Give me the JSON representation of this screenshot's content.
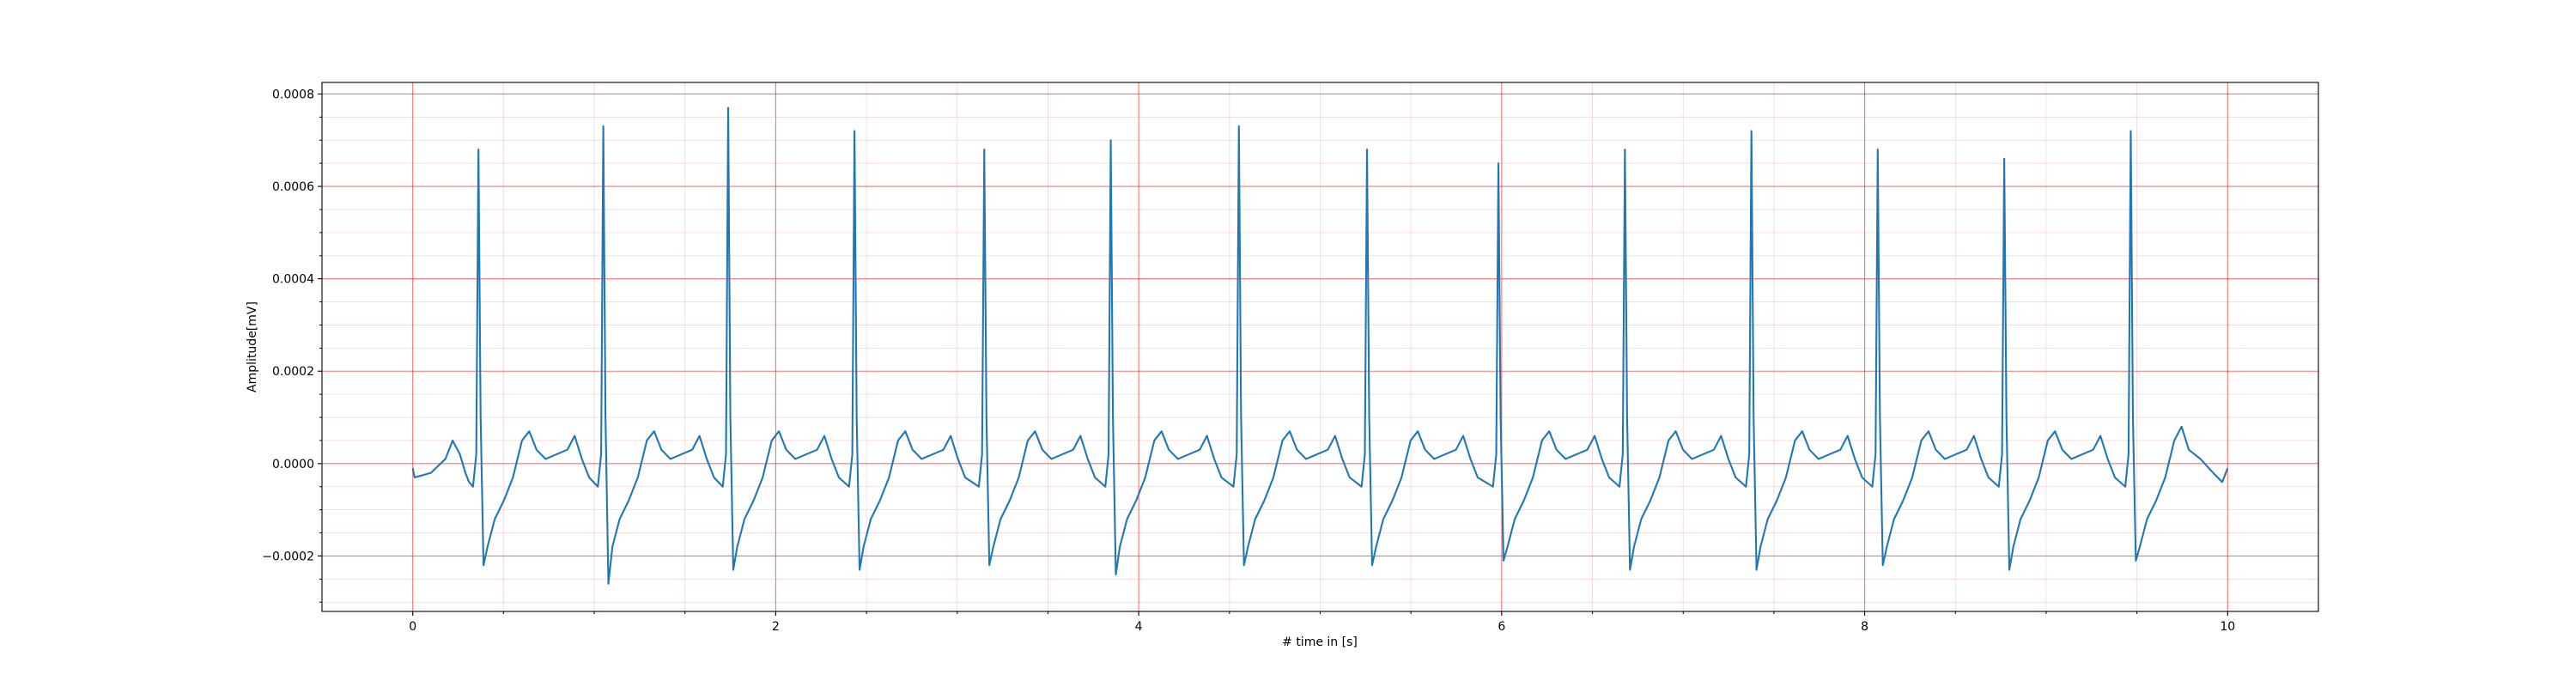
{
  "chart_data": {
    "type": "line",
    "xlabel": "# time in [s]",
    "ylabel": "Amplitude[mV]",
    "xlim": [
      -0.5,
      10.5
    ],
    "ylim": [
      -0.00032,
      0.000825
    ],
    "xticks": [
      0,
      2,
      4,
      6,
      8,
      10
    ],
    "yticks": [
      {
        "value": -0.0002,
        "label": "−0.0002"
      },
      {
        "value": 0,
        "label": "0.0000"
      },
      {
        "value": 0.0002,
        "label": "0.0002"
      },
      {
        "value": 0.0004,
        "label": "0.0004"
      },
      {
        "value": 0.0006,
        "label": "0.0006"
      },
      {
        "value": 0.0008,
        "label": "0.0008"
      }
    ],
    "xminorticks": [
      0.5,
      1,
      1.5,
      2.5,
      3,
      3.5,
      4.5,
      5,
      5.5,
      6.5,
      7,
      7.5,
      8.5,
      9,
      9.5
    ],
    "yminorticks": [
      -0.0003,
      -0.00025,
      -0.00015,
      -0.0001,
      -5e-05,
      5e-05,
      0.0001,
      0.00015,
      0.00025,
      0.0003,
      0.00035,
      0.00045,
      0.0005,
      0.00055,
      0.00065,
      0.0007,
      0.00075
    ],
    "grid": true,
    "grid_color": "#ff0000",
    "minor_grid_color": "#f4b8c0",
    "x": [
      0.0,
      0.01,
      0.1,
      0.18,
      0.22,
      0.26,
      0.29,
      0.31,
      0.332,
      0.35,
      0.362,
      0.374,
      0.39,
      0.412,
      0.452,
      0.502,
      0.552,
      0.602,
      0.642,
      0.682,
      0.732,
      0.792,
      0.852,
      0.892,
      0.932,
      0.972,
      1.02,
      1.038,
      1.05,
      1.062,
      1.078,
      1.1,
      1.14,
      1.19,
      1.24,
      1.29,
      1.33,
      1.37,
      1.42,
      1.48,
      1.54,
      1.58,
      1.62,
      1.66,
      1.708,
      1.726,
      1.738,
      1.75,
      1.766,
      1.788,
      1.828,
      1.878,
      1.928,
      1.978,
      2.018,
      2.058,
      2.108,
      2.168,
      2.228,
      2.268,
      2.308,
      2.348,
      2.404,
      2.422,
      2.434,
      2.446,
      2.462,
      2.484,
      2.524,
      2.574,
      2.624,
      2.674,
      2.714,
      2.754,
      2.804,
      2.864,
      2.924,
      2.964,
      3.004,
      3.044,
      3.119,
      3.137,
      3.149,
      3.161,
      3.177,
      3.199,
      3.239,
      3.289,
      3.339,
      3.389,
      3.429,
      3.469,
      3.519,
      3.579,
      3.639,
      3.679,
      3.719,
      3.759,
      3.816,
      3.834,
      3.846,
      3.858,
      3.874,
      3.896,
      3.936,
      3.986,
      4.036,
      4.086,
      4.126,
      4.166,
      4.216,
      4.276,
      4.336,
      4.376,
      4.416,
      4.456,
      4.522,
      4.54,
      4.552,
      4.564,
      4.58,
      4.602,
      4.642,
      4.692,
      4.742,
      4.792,
      4.832,
      4.872,
      4.922,
      4.982,
      5.042,
      5.082,
      5.122,
      5.162,
      5.228,
      5.246,
      5.258,
      5.27,
      5.286,
      5.308,
      5.348,
      5.398,
      5.448,
      5.498,
      5.538,
      5.578,
      5.628,
      5.688,
      5.748,
      5.788,
      5.828,
      5.868,
      5.952,
      5.97,
      5.982,
      5.994,
      6.01,
      6.032,
      6.072,
      6.122,
      6.172,
      6.222,
      6.262,
      6.302,
      6.352,
      6.412,
      6.472,
      6.512,
      6.552,
      6.592,
      6.649,
      6.667,
      6.679,
      6.691,
      6.707,
      6.729,
      6.769,
      6.819,
      6.869,
      6.919,
      6.959,
      6.999,
      7.049,
      7.109,
      7.169,
      7.209,
      7.249,
      7.289,
      7.346,
      7.364,
      7.376,
      7.388,
      7.404,
      7.426,
      7.466,
      7.516,
      7.566,
      7.616,
      7.656,
      7.696,
      7.746,
      7.806,
      7.866,
      7.906,
      7.946,
      7.986,
      8.042,
      8.06,
      8.072,
      8.084,
      8.1,
      8.122,
      8.162,
      8.212,
      8.262,
      8.312,
      8.352,
      8.392,
      8.442,
      8.502,
      8.562,
      8.602,
      8.642,
      8.682,
      8.739,
      8.757,
      8.769,
      8.781,
      8.797,
      8.819,
      8.859,
      8.909,
      8.959,
      9.009,
      9.049,
      9.089,
      9.139,
      9.199,
      9.259,
      9.299,
      9.339,
      9.379,
      9.436,
      9.454,
      9.466,
      9.478,
      9.494,
      9.516,
      9.556,
      9.606,
      9.656,
      9.706,
      9.746,
      9.786,
      9.85,
      9.92,
      9.97,
      10.0
    ],
    "series": [
      {
        "color": "#1f77b4",
        "values": [
          -1e-05,
          -3e-05,
          -2e-05,
          1e-05,
          5e-05,
          2e-05,
          -2e-05,
          -4e-05,
          -5e-05,
          2e-05,
          0.00068,
          0.0001,
          -0.00022,
          -0.00018,
          -0.00012,
          -8e-05,
          -3e-05,
          5e-05,
          7e-05,
          3e-05,
          1e-05,
          2e-05,
          3e-05,
          6e-05,
          1e-05,
          -3e-05,
          -5e-05,
          2e-05,
          0.00073,
          0.0001,
          -0.00026,
          -0.00018,
          -0.00012,
          -8e-05,
          -3e-05,
          5e-05,
          7e-05,
          3e-05,
          1e-05,
          2e-05,
          3e-05,
          6e-05,
          1e-05,
          -3e-05,
          -5e-05,
          2e-05,
          0.00077,
          0.0001,
          -0.00023,
          -0.00018,
          -0.00012,
          -8e-05,
          -3e-05,
          5e-05,
          7e-05,
          3e-05,
          1e-05,
          2e-05,
          3e-05,
          6e-05,
          1e-05,
          -3e-05,
          -5e-05,
          2e-05,
          0.00072,
          0.0001,
          -0.00023,
          -0.00018,
          -0.00012,
          -8e-05,
          -3e-05,
          5e-05,
          7e-05,
          3e-05,
          1e-05,
          2e-05,
          3e-05,
          6e-05,
          1e-05,
          -3e-05,
          -5e-05,
          2e-05,
          0.00068,
          0.0001,
          -0.00022,
          -0.00018,
          -0.00012,
          -8e-05,
          -3e-05,
          5e-05,
          7e-05,
          3e-05,
          1e-05,
          2e-05,
          3e-05,
          6e-05,
          1e-05,
          -3e-05,
          -5e-05,
          2e-05,
          0.0007,
          0.0001,
          -0.00024,
          -0.00018,
          -0.00012,
          -8e-05,
          -3e-05,
          5e-05,
          7e-05,
          3e-05,
          1e-05,
          2e-05,
          3e-05,
          6e-05,
          1e-05,
          -3e-05,
          -5e-05,
          2e-05,
          0.00073,
          0.0001,
          -0.00022,
          -0.00018,
          -0.00012,
          -8e-05,
          -3e-05,
          5e-05,
          7e-05,
          3e-05,
          1e-05,
          2e-05,
          3e-05,
          6e-05,
          1e-05,
          -3e-05,
          -5e-05,
          2e-05,
          0.00068,
          0.0001,
          -0.00022,
          -0.00018,
          -0.00012,
          -8e-05,
          -3e-05,
          5e-05,
          7e-05,
          3e-05,
          1e-05,
          2e-05,
          3e-05,
          6e-05,
          1e-05,
          -3e-05,
          -5e-05,
          2e-05,
          0.00065,
          0.0001,
          -0.00021,
          -0.00018,
          -0.00012,
          -8e-05,
          -3e-05,
          5e-05,
          7e-05,
          3e-05,
          1e-05,
          2e-05,
          3e-05,
          6e-05,
          1e-05,
          -3e-05,
          -5e-05,
          2e-05,
          0.00068,
          0.0001,
          -0.00023,
          -0.00018,
          -0.00012,
          -8e-05,
          -3e-05,
          5e-05,
          7e-05,
          3e-05,
          1e-05,
          2e-05,
          3e-05,
          6e-05,
          1e-05,
          -3e-05,
          -5e-05,
          2e-05,
          0.00072,
          0.0001,
          -0.00023,
          -0.00018,
          -0.00012,
          -8e-05,
          -3e-05,
          5e-05,
          7e-05,
          3e-05,
          1e-05,
          2e-05,
          3e-05,
          6e-05,
          1e-05,
          -3e-05,
          -5e-05,
          2e-05,
          0.00068,
          0.0001,
          -0.00022,
          -0.00018,
          -0.00012,
          -8e-05,
          -3e-05,
          5e-05,
          7e-05,
          3e-05,
          1e-05,
          2e-05,
          3e-05,
          6e-05,
          1e-05,
          -3e-05,
          -5e-05,
          2e-05,
          0.00066,
          0.0001,
          -0.00023,
          -0.00018,
          -0.00012,
          -8e-05,
          -3e-05,
          5e-05,
          7e-05,
          3e-05,
          1e-05,
          2e-05,
          3e-05,
          6e-05,
          1e-05,
          -3e-05,
          -5e-05,
          2e-05,
          0.00072,
          0.0001,
          -0.00021,
          -0.00018,
          -0.00012,
          -8e-05,
          -3e-05,
          5e-05,
          8e-05,
          3e-05,
          1e-05,
          -2e-05,
          -4e-05,
          -1e-05
        ]
      }
    ]
  }
}
